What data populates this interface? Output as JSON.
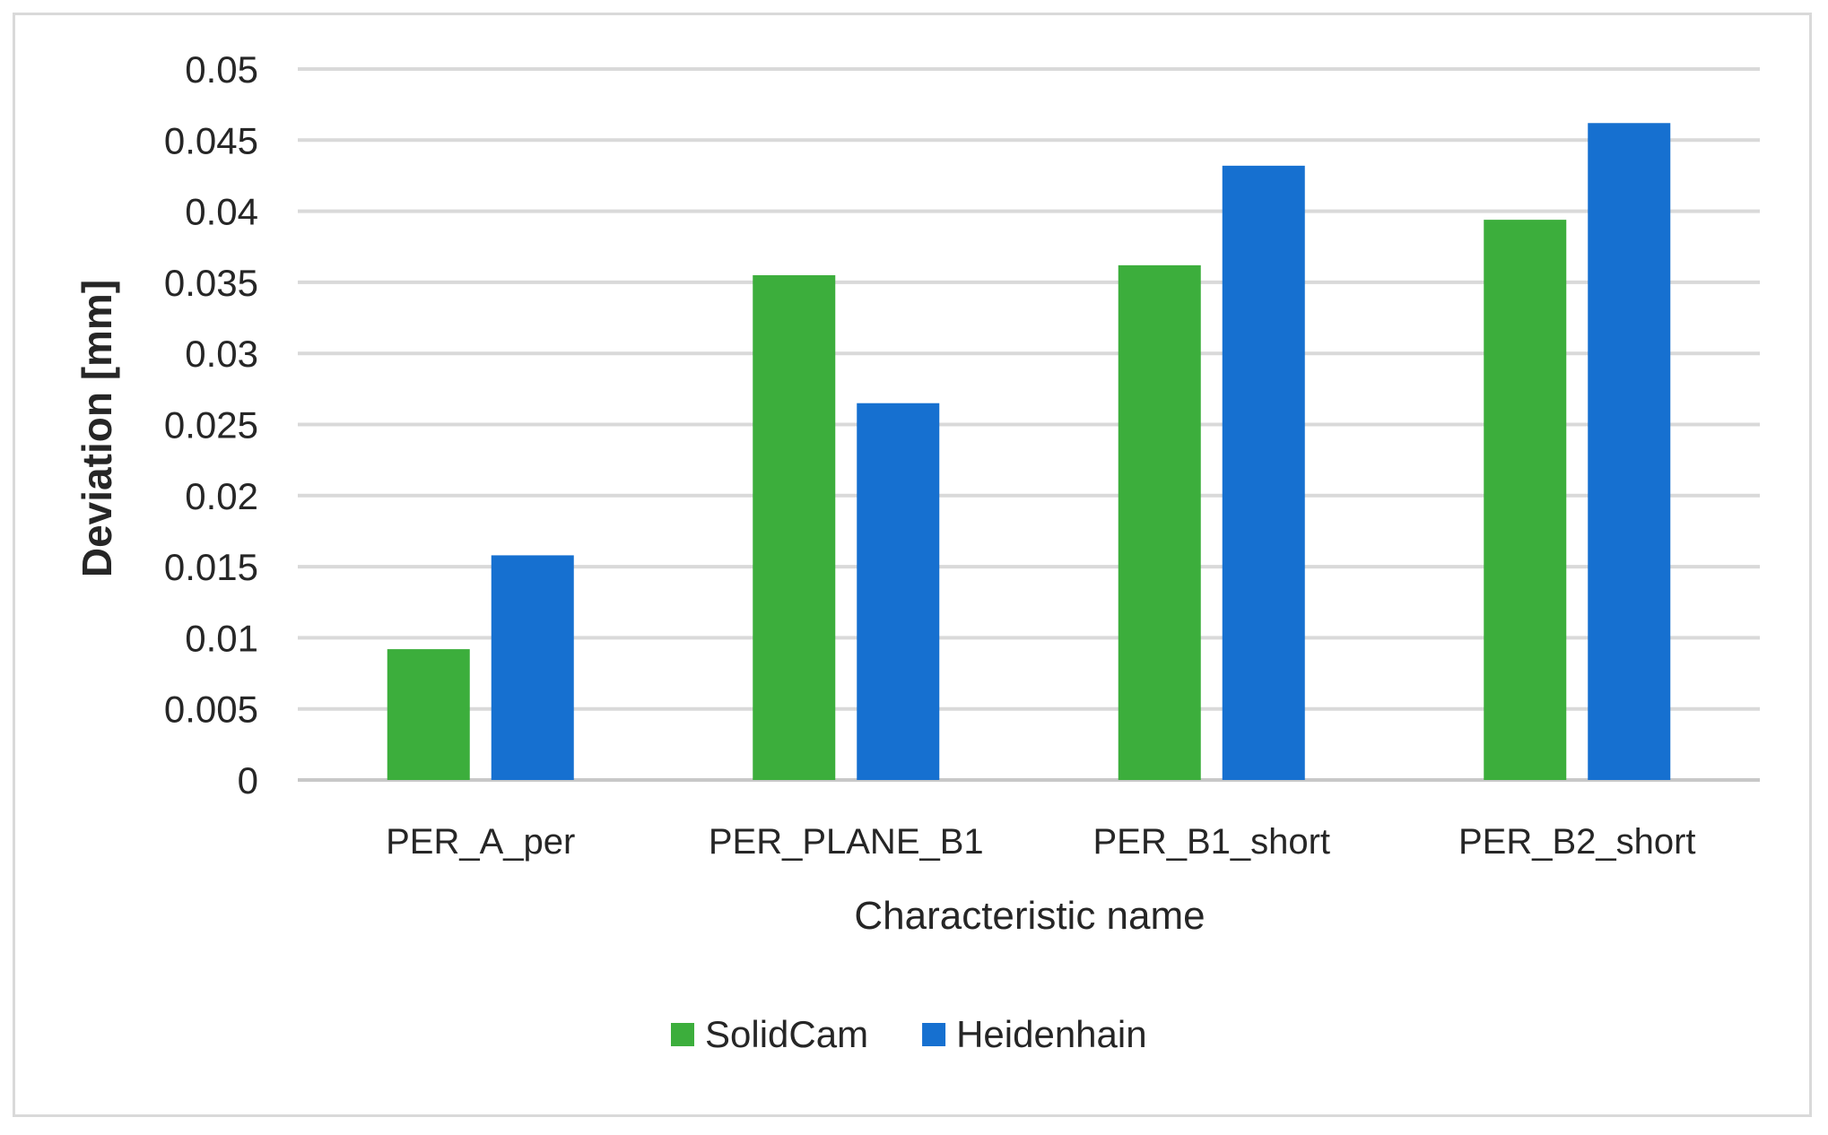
{
  "chart_data": {
    "type": "bar",
    "title": "",
    "xlabel": "Characteristic name",
    "ylabel": "Deviation [mm]",
    "ylim": [
      0,
      0.05
    ],
    "yticks": [
      "0",
      "0.005",
      "0.01",
      "0.015",
      "0.02",
      "0.025",
      "0.03",
      "0.035",
      "0.04",
      "0.045",
      "0.05"
    ],
    "categories": [
      "PER_A_per",
      "PER_PLANE_B1",
      "PER_B1_short",
      "PER_B2_short"
    ],
    "series": [
      {
        "name": "SolidCam",
        "color": "#3cae3c",
        "values": [
          0.0092,
          0.0355,
          0.0362,
          0.0394
        ]
      },
      {
        "name": "Heidenhain",
        "color": "#1670d0",
        "values": [
          0.0158,
          0.0265,
          0.0432,
          0.0462
        ]
      }
    ],
    "grid": true,
    "legend_position": "bottom"
  }
}
